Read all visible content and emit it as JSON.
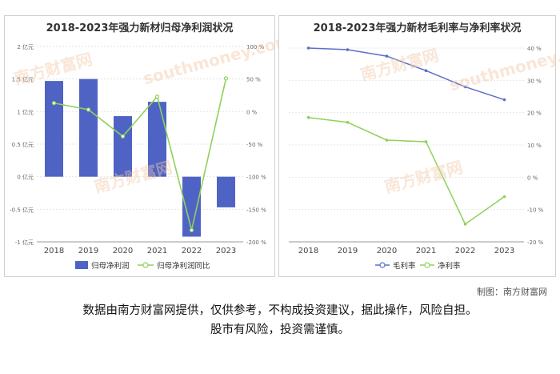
{
  "chart_data": [
    {
      "type": "bar",
      "title": "2018-2023年强力新材归母净利润状况",
      "categories": [
        "2018",
        "2019",
        "2020",
        "2021",
        "2022",
        "2023"
      ],
      "series": [
        {
          "name": "归母净利润",
          "type": "bar",
          "axis": "left",
          "color": "#4f63c4",
          "values": [
            1.47,
            1.5,
            0.93,
            1.15,
            -0.92,
            -0.47
          ]
        },
        {
          "name": "归母净利润同比",
          "type": "line",
          "axis": "right",
          "color": "#8fd15a",
          "values": [
            13,
            3,
            -38,
            23,
            -182,
            51
          ]
        }
      ],
      "y_left": {
        "ylim": [
          -1,
          2
        ],
        "ticks": [
          "2 亿元",
          "1.5 亿元",
          "1 亿元",
          "0.5 亿元",
          "0 亿元",
          "-0.5 亿元",
          "-1 亿元"
        ]
      },
      "y_right": {
        "ylim": [
          -200,
          100
        ],
        "ticks": [
          "100 %",
          "50 %",
          "0 %",
          "-50 %",
          "-100 %",
          "-150 %",
          "-200 %"
        ]
      },
      "legend_placement": "bottom"
    },
    {
      "type": "line",
      "title": "2018-2023年强力新材毛利率与净利率状况",
      "categories": [
        "2018",
        "2019",
        "2020",
        "2021",
        "2022",
        "2023"
      ],
      "series": [
        {
          "name": "毛利率",
          "color": "#5b6fc7",
          "values": [
            40,
            39.5,
            37.5,
            33,
            28,
            24
          ]
        },
        {
          "name": "净利率",
          "color": "#8fd15a",
          "values": [
            18.5,
            17,
            11.5,
            11,
            -14.5,
            -6
          ]
        }
      ],
      "ylim": [
        -20,
        40
      ],
      "ticks": [
        "40 %",
        "30 %",
        "20 %",
        "10 %",
        "0 %",
        "-10 %",
        "-20 %"
      ],
      "legend_placement": "bottom"
    }
  ],
  "credit": "制图：南方财富网",
  "disclaimer_line1": "数据由南方财富网提供，仅供参考，不构成投资建议，据此操作，风险自担。",
  "disclaimer_line2": "股市有风险，投资需谨慎。",
  "watermark": {
    "cn": "南方财富网",
    "en": "southmoney.com"
  }
}
